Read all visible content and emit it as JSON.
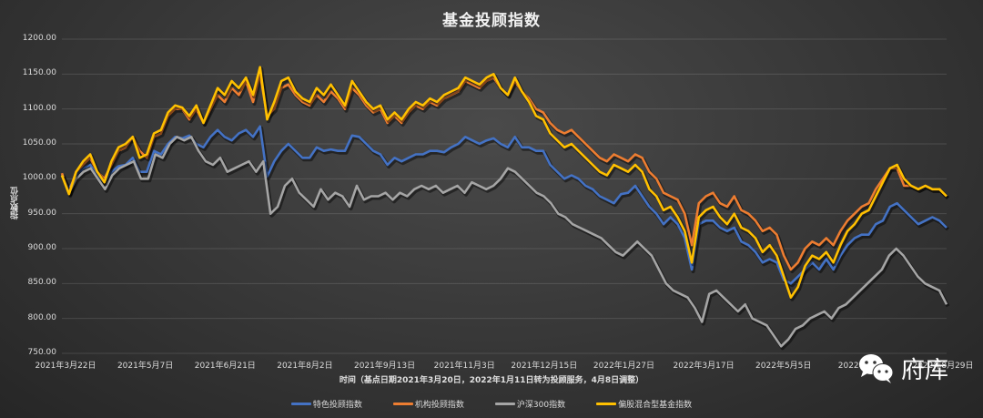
{
  "chart_data": {
    "type": "line",
    "title": "基金投顾指数",
    "xlabel": "时间（基点日期2021年3月20日，2022年1月11日转为投顾服务，4月8日调整）",
    "ylabel": "指数点位",
    "ylim": [
      750,
      1200
    ],
    "yticks": [
      "1200.00",
      "1150.00",
      "1100.00",
      "1050.00",
      "1000.00",
      "950.00",
      "900.00",
      "850.00",
      "800.00",
      "750.00"
    ],
    "xticks": [
      "2021年3月22日",
      "2021年5月7日",
      "2021年6月21日",
      "2021年8月2日",
      "2021年9月13日",
      "2021年11月3日",
      "2021年12月15日",
      "2022年1月27日",
      "2022年3月17日",
      "2022年5月5日",
      "2022年6月...",
      "2022年8月29日"
    ],
    "grid": true,
    "legend_position": "bottom",
    "series": [
      {
        "name": "特色投顾指数",
        "color": "#4472C4",
        "values": [
          1005,
          985,
          1005,
          1015,
          1020,
          1005,
          995,
          1010,
          1018,
          1020,
          1030,
          1010,
          1010,
          1040,
          1035,
          1050,
          1060,
          1058,
          1062,
          1050,
          1045,
          1060,
          1070,
          1060,
          1055,
          1065,
          1070,
          1060,
          1075,
          1003,
          1025,
          1040,
          1050,
          1040,
          1030,
          1030,
          1045,
          1040,
          1042,
          1040,
          1040,
          1062,
          1060,
          1050,
          1040,
          1035,
          1020,
          1030,
          1025,
          1030,
          1035,
          1035,
          1040,
          1040,
          1038,
          1045,
          1050,
          1060,
          1055,
          1050,
          1055,
          1058,
          1050,
          1045,
          1060,
          1045,
          1045,
          1040,
          1040,
          1020,
          1010,
          1000,
          1005,
          1000,
          990,
          985,
          975,
          970,
          965,
          978,
          980,
          990,
          975,
          960,
          950,
          935,
          945,
          935,
          915,
          870,
          935,
          940,
          940,
          930,
          925,
          930,
          910,
          905,
          895,
          880,
          885,
          880,
          855,
          850,
          860,
          870,
          880,
          870,
          885,
          870,
          890,
          905,
          915,
          920,
          920,
          935,
          940,
          960,
          965,
          955,
          945,
          935,
          940,
          945,
          940,
          930
        ]
      },
      {
        "name": "机构投顾指数",
        "color": "#ED7D31",
        "values": [
          1008,
          980,
          1010,
          1020,
          1030,
          1010,
          1000,
          1020,
          1040,
          1045,
          1060,
          1040,
          1030,
          1060,
          1065,
          1090,
          1100,
          1100,
          1085,
          1100,
          1080,
          1100,
          1120,
          1110,
          1130,
          1120,
          1140,
          1110,
          1150,
          1090,
          1100,
          1130,
          1135,
          1120,
          1110,
          1105,
          1120,
          1110,
          1125,
          1115,
          1100,
          1130,
          1120,
          1105,
          1095,
          1100,
          1080,
          1090,
          1080,
          1095,
          1105,
          1100,
          1110,
          1105,
          1115,
          1120,
          1125,
          1140,
          1135,
          1130,
          1140,
          1145,
          1130,
          1120,
          1140,
          1125,
          1115,
          1100,
          1095,
          1080,
          1070,
          1065,
          1070,
          1060,
          1050,
          1040,
          1030,
          1025,
          1035,
          1030,
          1025,
          1035,
          1030,
          1010,
          1000,
          980,
          975,
          970,
          950,
          905,
          965,
          975,
          980,
          965,
          960,
          975,
          955,
          950,
          940,
          925,
          930,
          920,
          890,
          870,
          880,
          900,
          910,
          905,
          915,
          905,
          925,
          940,
          950,
          960,
          965,
          985,
          1000,
          1015,
          1015,
          990,
          990,
          985,
          990,
          985,
          985,
          975
        ]
      },
      {
        "name": "沪深300指数",
        "color": "#A5A5A5",
        "values": [
          1005,
          980,
          1000,
          1010,
          1015,
          1000,
          985,
          1005,
          1015,
          1020,
          1025,
          1000,
          1000,
          1035,
          1030,
          1050,
          1060,
          1055,
          1060,
          1040,
          1025,
          1020,
          1030,
          1010,
          1015,
          1020,
          1025,
          1010,
          1025,
          950,
          960,
          990,
          1000,
          980,
          970,
          960,
          985,
          970,
          980,
          975,
          960,
          990,
          970,
          975,
          975,
          980,
          970,
          980,
          975,
          985,
          990,
          985,
          990,
          980,
          985,
          990,
          980,
          995,
          990,
          985,
          990,
          1000,
          1015,
          1010,
          1000,
          990,
          980,
          975,
          965,
          950,
          945,
          935,
          930,
          925,
          920,
          915,
          905,
          895,
          890,
          900,
          910,
          900,
          890,
          870,
          850,
          840,
          835,
          830,
          815,
          795,
          835,
          840,
          830,
          820,
          810,
          820,
          800,
          795,
          790,
          775,
          760,
          770,
          785,
          790,
          800,
          805,
          810,
          800,
          815,
          820,
          830,
          840,
          850,
          860,
          870,
          890,
          900,
          890,
          875,
          860,
          850,
          845,
          840,
          820
        ]
      },
      {
        "name": "偏股混合型基金指数",
        "color": "#FFC000",
        "values": [
          1005,
          978,
          1010,
          1025,
          1035,
          1010,
          995,
          1025,
          1045,
          1050,
          1060,
          1030,
          1035,
          1065,
          1070,
          1095,
          1105,
          1102,
          1090,
          1105,
          1080,
          1105,
          1130,
          1120,
          1140,
          1130,
          1145,
          1120,
          1160,
          1085,
          1110,
          1140,
          1145,
          1125,
          1115,
          1110,
          1130,
          1120,
          1135,
          1120,
          1105,
          1140,
          1125,
          1110,
          1100,
          1105,
          1085,
          1095,
          1085,
          1100,
          1110,
          1105,
          1115,
          1110,
          1120,
          1125,
          1130,
          1145,
          1140,
          1135,
          1145,
          1150,
          1130,
          1120,
          1145,
          1125,
          1110,
          1090,
          1085,
          1065,
          1055,
          1045,
          1050,
          1040,
          1030,
          1020,
          1010,
          1005,
          1020,
          1015,
          1010,
          1020,
          1010,
          985,
          975,
          955,
          960,
          945,
          925,
          880,
          945,
          955,
          960,
          945,
          935,
          950,
          930,
          925,
          915,
          895,
          905,
          890,
          860,
          830,
          845,
          875,
          890,
          885,
          895,
          880,
          905,
          925,
          935,
          950,
          955,
          975,
          995,
          1015,
          1020,
          1000,
          990,
          985,
          990,
          985,
          985,
          975
        ]
      }
    ]
  },
  "legend": {
    "items": [
      {
        "label": "特色投顾指数",
        "color": "#4472C4"
      },
      {
        "label": "机构投顾指数",
        "color": "#ED7D31"
      },
      {
        "label": "沪深300指数",
        "color": "#A5A5A5"
      },
      {
        "label": "偏股混合型基金指数",
        "color": "#FFC000"
      }
    ]
  },
  "watermark": {
    "text": "府库",
    "icon": "wechat-icon"
  }
}
